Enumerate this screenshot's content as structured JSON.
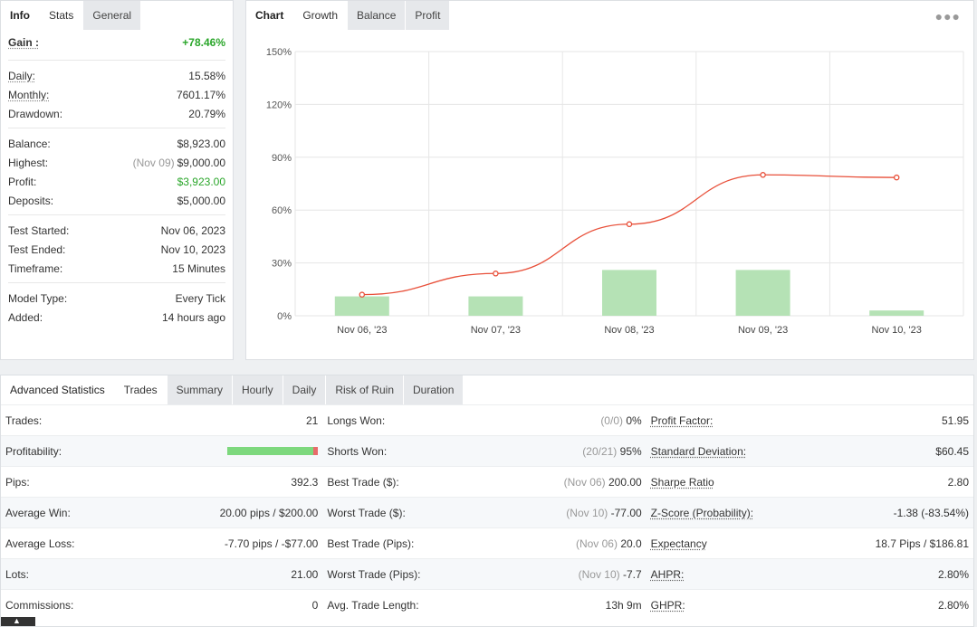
{
  "info": {
    "tabs": [
      "Info",
      "Stats",
      "General"
    ],
    "gain_label": "Gain :",
    "gain_value": "+78.46%",
    "group1": [
      {
        "label": "Daily:",
        "value": "15.58%",
        "underline": true
      },
      {
        "label": "Monthly:",
        "value": "7601.17%",
        "underline": true
      },
      {
        "label": "Drawdown:",
        "value": "20.79%",
        "underline": false
      }
    ],
    "group2": [
      {
        "label": "Balance:",
        "value": "$8,923.00"
      },
      {
        "label": "Highest:",
        "prefix": "(Nov 09)",
        "value": "$9,000.00"
      },
      {
        "label": "Profit:",
        "value": "$3,923.00"
      },
      {
        "label": "Deposits:",
        "value": "$5,000.00"
      }
    ],
    "group3": [
      {
        "label": "Test Started:",
        "value": "Nov 06, 2023"
      },
      {
        "label": "Test Ended:",
        "value": "Nov 10, 2023"
      },
      {
        "label": "Timeframe:",
        "value": "15 Minutes"
      }
    ],
    "group4": [
      {
        "label": "Model Type:",
        "value": "Every Tick"
      },
      {
        "label": "Added:",
        "value": "14 hours ago"
      }
    ]
  },
  "chart": {
    "tabs": [
      "Chart",
      "Growth",
      "Balance",
      "Profit"
    ],
    "menu_icon": "more-dots-icon",
    "colors": {
      "line": "#e8503a",
      "bar": "#b5e2b5",
      "grid": "#e6e6e6"
    }
  },
  "chart_data": {
    "type": "bar+line",
    "categories": [
      "Nov 06, '23",
      "Nov 07, '23",
      "Nov 08, '23",
      "Nov 09, '23",
      "Nov 10, '23"
    ],
    "y_ticks": [
      "0%",
      "30%",
      "60%",
      "90%",
      "120%",
      "150%"
    ],
    "ylim": [
      0,
      150
    ],
    "series": [
      {
        "kind": "bar",
        "values": [
          11,
          11,
          26,
          26,
          3
        ]
      },
      {
        "kind": "line",
        "values": [
          12,
          24,
          52,
          80,
          78.5
        ]
      }
    ],
    "grid": true
  },
  "advanced": {
    "tabs": [
      "Advanced Statistics",
      "Trades",
      "Summary",
      "Hourly",
      "Daily",
      "Risk of Ruin",
      "Duration"
    ],
    "rows": [
      [
        {
          "label": "Trades:",
          "value": "21"
        },
        {
          "label": "Longs Won:",
          "prefix": "(0/0)",
          "value": "0%"
        },
        {
          "label": "Profit Factor:",
          "value": "51.95",
          "underline": true
        }
      ],
      [
        {
          "label": "Profitability:",
          "bar": true,
          "profitable_fraction": 0.95
        },
        {
          "label": "Shorts Won:",
          "prefix": "(20/21)",
          "value": "95%"
        },
        {
          "label": "Standard Deviation:",
          "value": "$60.45",
          "underline": true
        }
      ],
      [
        {
          "label": "Pips:",
          "value": "392.3"
        },
        {
          "label": "Best Trade ($):",
          "prefix": "(Nov 06)",
          "value": "200.00"
        },
        {
          "label": "Sharpe Ratio",
          "value": "2.80",
          "underline": true
        }
      ],
      [
        {
          "label": "Average Win:",
          "value": "20.00 pips / $200.00"
        },
        {
          "label": "Worst Trade ($):",
          "prefix": "(Nov 10)",
          "value": "-77.00"
        },
        {
          "label": "Z-Score (Probability):",
          "value": "-1.38 (-83.54%)",
          "underline": true
        }
      ],
      [
        {
          "label": "Average Loss:",
          "value": "-7.70 pips / -$77.00"
        },
        {
          "label": "Best Trade (Pips):",
          "prefix": "(Nov 06)",
          "value": "20.0"
        },
        {
          "label": "Expectancy",
          "value": "18.7 Pips / $186.81",
          "underline": true
        }
      ],
      [
        {
          "label": "Lots:",
          "value": "21.00"
        },
        {
          "label": "Worst Trade (Pips):",
          "prefix": "(Nov 10)",
          "value": "-7.7"
        },
        {
          "label": "AHPR:",
          "value": "2.80%",
          "underline": true
        }
      ],
      [
        {
          "label": "Commissions:",
          "value": "0"
        },
        {
          "label": "Avg. Trade Length:",
          "value": "13h 9m"
        },
        {
          "label": "GHPR:",
          "value": "2.80%",
          "underline": true
        }
      ]
    ]
  }
}
